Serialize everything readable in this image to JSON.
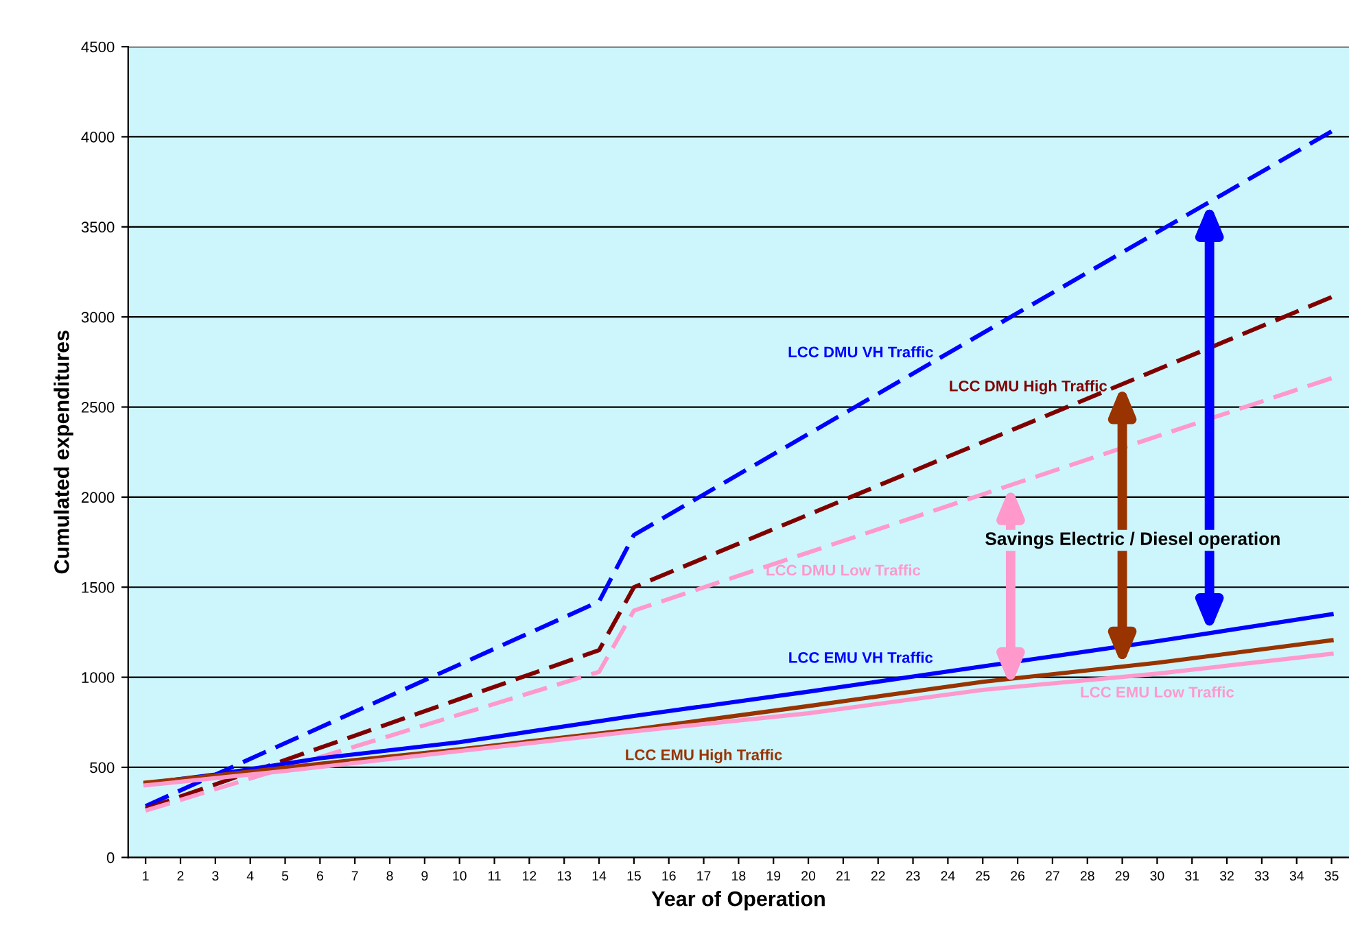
{
  "chart_data": {
    "type": "line",
    "xlabel": "Year of Operation",
    "ylabel": "Cumulated expenditures",
    "xlim": [
      0.5,
      35.5
    ],
    "xticks": [
      1,
      2,
      3,
      4,
      5,
      6,
      7,
      8,
      9,
      10,
      11,
      12,
      13,
      14,
      15,
      16,
      17,
      18,
      19,
      20,
      21,
      22,
      23,
      24,
      25,
      26,
      27,
      28,
      29,
      30,
      31,
      32,
      33,
      34,
      35
    ],
    "ylim": [
      0,
      4500
    ],
    "yticks": [
      0,
      500,
      1000,
      1500,
      2000,
      2500,
      3000,
      3500,
      4000,
      4500
    ],
    "grid": "y",
    "series": [
      {
        "name": "LCC DMU VH Traffic",
        "color": "#0000ff",
        "line_style": "dashed",
        "x": [
          1,
          14,
          15,
          35
        ],
        "values": [
          285,
          1420,
          1790,
          4030
        ]
      },
      {
        "name": "LCC DMU High Traffic",
        "color": "#800000",
        "line_style": "dashed",
        "x": [
          1,
          14,
          15,
          35
        ],
        "values": [
          270,
          1150,
          1500,
          3110
        ]
      },
      {
        "name": "LCC DMU Low Traffic",
        "color": "#ff99cc",
        "line_style": "dashed",
        "x": [
          1,
          14,
          15,
          35
        ],
        "values": [
          260,
          1030,
          1370,
          2660
        ]
      },
      {
        "name": "LCC EMU VH Traffic",
        "color": "#0000ff",
        "line_style": "solid",
        "x": [
          1,
          3,
          6,
          10,
          15,
          20,
          25,
          30,
          35
        ],
        "values": [
          410,
          460,
          550,
          640,
          785,
          920,
          1060,
          1200,
          1350
        ]
      },
      {
        "name": "LCC EMU High Traffic",
        "color": "#993300",
        "line_style": "solid",
        "x": [
          1,
          3,
          6,
          10,
          15,
          20,
          25,
          30,
          35
        ],
        "values": [
          415,
          455,
          520,
          600,
          710,
          840,
          975,
          1080,
          1205
        ]
      },
      {
        "name": "LCC EMU Low Traffic",
        "color": "#ff99cc",
        "line_style": "solid",
        "x": [
          1,
          5,
          10,
          15,
          20,
          25,
          30,
          35
        ],
        "values": [
          400,
          480,
          590,
          700,
          800,
          930,
          1020,
          1130
        ]
      }
    ],
    "annotations": [
      "Savings Electric / Diesel operation"
    ]
  }
}
